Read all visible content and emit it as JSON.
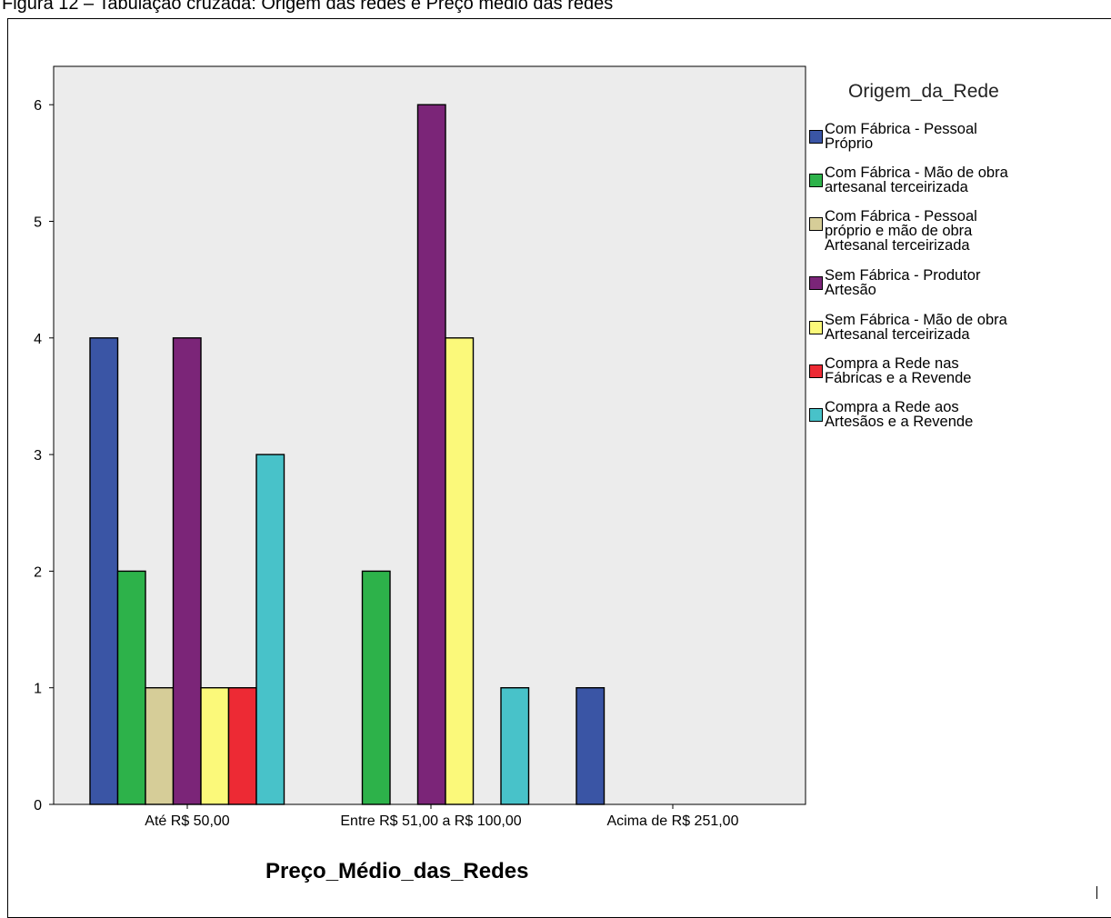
{
  "caption": "Figura 12 – Tabulação cruzada: Origem das redes e Preço médio das redes",
  "chart_data": {
    "type": "bar",
    "title": "",
    "xlabel": "Preço_Médio_das_Redes",
    "ylabel": "",
    "ylim": [
      0,
      6.5
    ],
    "yticks": [
      "0",
      "1",
      "2",
      "3",
      "4",
      "5",
      "6"
    ],
    "grid": false,
    "legend_title": "Origem_da_Rede",
    "legend_position": "right",
    "categories": [
      "Até R$ 50,00",
      "Entre R$ 51,00 a R$ 100,00",
      "Acima de R$ 251,00"
    ],
    "series": [
      {
        "name": "Com Fábrica - Pessoal\nPróprio",
        "color": "#3a55a5",
        "values": [
          4,
          null,
          1
        ]
      },
      {
        "name": "Com Fábrica - Mão de obra\nartesanal terceirizada",
        "color": "#2db24a",
        "values": [
          2,
          2,
          null
        ]
      },
      {
        "name": "Com Fábrica - Pessoal\npróprio e mão de obra\nArtesanal terceirizada",
        "color": "#d6cd98",
        "values": [
          1,
          null,
          null
        ]
      },
      {
        "name": "Sem Fábrica - Produtor\nArtesão",
        "color": "#7b2578",
        "values": [
          4,
          6,
          null
        ]
      },
      {
        "name": "Sem Fábrica - Mão de obra\nArtesanal terceirizada",
        "color": "#fbf97a",
        "values": [
          1,
          4,
          null
        ]
      },
      {
        "name": "Compra a Rede nas\nFábricas e a Revende",
        "color": "#ed2a34",
        "values": [
          1,
          null,
          null
        ]
      },
      {
        "name": "Compra a Rede aos\nArtesãos e a Revende",
        "color": "#48c2c9",
        "values": [
          3,
          1,
          null
        ]
      }
    ],
    "plot_background": "#ececec"
  }
}
